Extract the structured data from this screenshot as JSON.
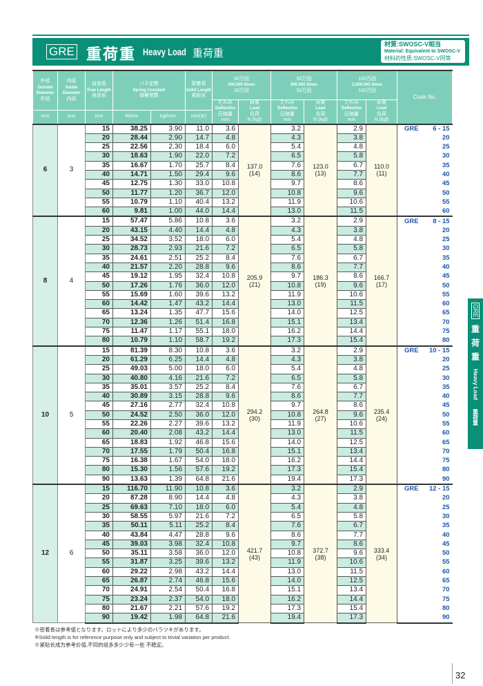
{
  "header": {
    "series": "GRE",
    "title_jp": "重荷重",
    "title_en": "Heavy Load",
    "title_cn": "重荷重",
    "material_jp": "材質:SWOSC-V相当",
    "material_en": "Material: Equivalent to SWOSC-V",
    "material_cn": "材料的性质:SWOSC-V同等"
  },
  "columns": {
    "od": {
      "jp": "外径",
      "en": "Outside Diameter",
      "cn": "外径",
      "unit": "mm"
    },
    "id": {
      "jp": "内径",
      "en": "Inside Diameter",
      "cn": "内径",
      "unit": "mm"
    },
    "free": {
      "jp": "自由長",
      "en": "Free Length",
      "cn": "自由长",
      "unit": "mm"
    },
    "spring": {
      "jp": "バネ定数",
      "en": "Spring Constant",
      "cn": "弹簧常数",
      "unit1": "N/mm",
      "unit2": "kgf/mm"
    },
    "solid": {
      "jp": "密着長",
      "en": "Solid Length",
      "cn": "紧贴长",
      "unit": "mm(※)"
    },
    "life": [
      {
        "jp": "30万回",
        "en": "300,000 times",
        "cn": "30万回"
      },
      {
        "jp": "50万回",
        "en": "500,000 times",
        "cn": "50万回"
      },
      {
        "jp": "100万回",
        "en": "1,000,000 times",
        "cn": "100万回"
      }
    ],
    "defl": {
      "jp": "たわみ",
      "en": "Deflection",
      "cn": "压缩量",
      "unit": "mm"
    },
    "load": {
      "jp": "荷重",
      "en": "Load",
      "cn": "负荷",
      "unit": "N (kgf)"
    },
    "code": "Code No."
  },
  "groups": [
    {
      "od": "6",
      "id": "3",
      "loads": [
        [
          "137.0",
          "(14)"
        ],
        [
          "123.0",
          "(13)"
        ],
        [
          "110.0",
          "(11)"
        ]
      ],
      "stripe_start": "w",
      "code_prefix": "GRE",
      "rows": [
        [
          "15",
          "38.25",
          "3.90",
          "11.0",
          "3.6",
          "3.2",
          "2.9",
          "6 - 15"
        ],
        [
          "20",
          "28.44",
          "2.90",
          "14.7",
          "4.8",
          "4.3",
          "3.8",
          "20"
        ],
        [
          "25",
          "22.56",
          "2.30",
          "18.4",
          "6.0",
          "5.4",
          "4.8",
          "25"
        ],
        [
          "30",
          "18.63",
          "1.90",
          "22.0",
          "7.2",
          "6.5",
          "5.8",
          "30"
        ],
        [
          "35",
          "16.67",
          "1.70",
          "25.7",
          "8.4",
          "7.6",
          "6.7",
          "35"
        ],
        [
          "40",
          "14.71",
          "1.50",
          "29.4",
          "9.6",
          "8.6",
          "7.7",
          "40"
        ],
        [
          "45",
          "12.75",
          "1.30",
          "33.0",
          "10.8",
          "9.7",
          "8.6",
          "45"
        ],
        [
          "50",
          "11.77",
          "1.20",
          "36.7",
          "12.0",
          "10.8",
          "9.6",
          "50"
        ],
        [
          "55",
          "10.79",
          "1.10",
          "40.4",
          "13.2",
          "11.9",
          "10.6",
          "55"
        ],
        [
          "60",
          "9.81",
          "1.00",
          "44.0",
          "14.4",
          "13.0",
          "11.5",
          "60"
        ]
      ]
    },
    {
      "od": "8",
      "id": "4",
      "loads": [
        [
          "205.9",
          "(21)"
        ],
        [
          "186.3",
          "(19)"
        ],
        [
          "166.7",
          "(17)"
        ]
      ],
      "stripe_start": "w",
      "code_prefix": "GRE",
      "rows": [
        [
          "15",
          "57.47",
          "5.86",
          "10.8",
          "3.6",
          "3.2",
          "2.9",
          "8 - 15"
        ],
        [
          "20",
          "43.15",
          "4.40",
          "14.4",
          "4.8",
          "4.3",
          "3.8",
          "20"
        ],
        [
          "25",
          "34.52",
          "3.52",
          "18.0",
          "6.0",
          "5.4",
          "4.8",
          "25"
        ],
        [
          "30",
          "28.73",
          "2.93",
          "21.6",
          "7.2",
          "6.5",
          "5.8",
          "30"
        ],
        [
          "35",
          "24.61",
          "2.51",
          "25.2",
          "8.4",
          "7.6",
          "6.7",
          "35"
        ],
        [
          "40",
          "21.57",
          "2.20",
          "28.8",
          "9.6",
          "8.6",
          "7.7",
          "40"
        ],
        [
          "45",
          "19.12",
          "1.95",
          "32.4",
          "10.8",
          "9.7",
          "8.6",
          "45"
        ],
        [
          "50",
          "17.26",
          "1.76",
          "36.0",
          "12.0",
          "10.8",
          "9.6",
          "50"
        ],
        [
          "55",
          "15.69",
          "1.60",
          "39.6",
          "13.2",
          "11.9",
          "10.6",
          "55"
        ],
        [
          "60",
          "14.42",
          "1.47",
          "43.2",
          "14.4",
          "13.0",
          "11.5",
          "60"
        ],
        [
          "65",
          "13.24",
          "1.35",
          "47.7",
          "15.6",
          "14.0",
          "12.5",
          "65"
        ],
        [
          "70",
          "12.36",
          "1.26",
          "51.4",
          "16.8",
          "15.1",
          "13.4",
          "70"
        ],
        [
          "75",
          "11.47",
          "1.17",
          "55.1",
          "18.0",
          "16.2",
          "14.4",
          "75"
        ],
        [
          "80",
          "10.79",
          "1.10",
          "58.7",
          "19.2",
          "17.3",
          "15.4",
          "80"
        ]
      ]
    },
    {
      "od": "10",
      "id": "5",
      "loads": [
        [
          "294.2",
          "(30)"
        ],
        [
          "264.8",
          "(27)"
        ],
        [
          "235.4",
          "(24)"
        ]
      ],
      "stripe_start": "w",
      "code_prefix": "GRE",
      "rows": [
        [
          "15",
          "81.39",
          "8.30",
          "10.8",
          "3.6",
          "3.2",
          "2.9",
          "10 - 15"
        ],
        [
          "20",
          "61.29",
          "6.25",
          "14.4",
          "4.8",
          "4.3",
          "3.8",
          "20"
        ],
        [
          "25",
          "49.03",
          "5.00",
          "18.0",
          "6.0",
          "5.4",
          "4.8",
          "25"
        ],
        [
          "30",
          "40.80",
          "4.16",
          "21.6",
          "7.2",
          "6.5",
          "5.8",
          "30"
        ],
        [
          "35",
          "35.01",
          "3.57",
          "25.2",
          "8.4",
          "7.6",
          "6.7",
          "35"
        ],
        [
          "40",
          "30.89",
          "3.15",
          "28.8",
          "9.6",
          "8.6",
          "7.7",
          "40"
        ],
        [
          "45",
          "27.16",
          "2.77",
          "32.4",
          "10.8",
          "9.7",
          "8.6",
          "45"
        ],
        [
          "50",
          "24.52",
          "2.50",
          "36.0",
          "12.0",
          "10.8",
          "9.6",
          "50"
        ],
        [
          "55",
          "22.26",
          "2.27",
          "39.6",
          "13.2",
          "11.9",
          "10.6",
          "55"
        ],
        [
          "60",
          "20.40",
          "2.08",
          "43.2",
          "14.4",
          "13.0",
          "11.5",
          "60"
        ],
        [
          "65",
          "18.83",
          "1.92",
          "46.8",
          "15.6",
          "14.0",
          "12.5",
          "65"
        ],
        [
          "70",
          "17.55",
          "1.79",
          "50.4",
          "16.8",
          "15.1",
          "13.4",
          "70"
        ],
        [
          "75",
          "16.38",
          "1.67",
          "54.0",
          "18.0",
          "16.2",
          "14.4",
          "75"
        ],
        [
          "80",
          "15.30",
          "1.56",
          "57.6",
          "19.2",
          "17.3",
          "15.4",
          "80"
        ],
        [
          "90",
          "13.63",
          "1.39",
          "64.8",
          "21.6",
          "19.4",
          "17.3",
          "90"
        ]
      ]
    },
    {
      "od": "12",
      "id": "6",
      "loads": [
        [
          "421.7",
          "(43)"
        ],
        [
          "372.7",
          "(38)"
        ],
        [
          "333.4",
          "(34)"
        ]
      ],
      "stripe_start": "g",
      "code_prefix": "GRE",
      "rows": [
        [
          "15",
          "116.70",
          "11.90",
          "10.8",
          "3.6",
          "3.2",
          "2.9",
          "12 - 15"
        ],
        [
          "20",
          "87.28",
          "8.90",
          "14.4",
          "4.8",
          "4.3",
          "3.8",
          "20"
        ],
        [
          "25",
          "69.63",
          "7.10",
          "18.0",
          "6.0",
          "5.4",
          "4.8",
          "25"
        ],
        [
          "30",
          "58.55",
          "5.97",
          "21.6",
          "7.2",
          "6.5",
          "5.8",
          "30"
        ],
        [
          "35",
          "50.11",
          "5.11",
          "25.2",
          "8.4",
          "7.6",
          "6.7",
          "35"
        ],
        [
          "40",
          "43.84",
          "4.47",
          "28.8",
          "9.6",
          "8.6",
          "7.7",
          "40"
        ],
        [
          "45",
          "39.03",
          "3.98",
          "32.4",
          "10.8",
          "9.7",
          "8.6",
          "45"
        ],
        [
          "50",
          "35.11",
          "3.58",
          "36.0",
          "12.0",
          "10.8",
          "9.6",
          "50"
        ],
        [
          "55",
          "31.87",
          "3.25",
          "39.6",
          "13.2",
          "11.9",
          "10.6",
          "55"
        ],
        [
          "60",
          "29.22",
          "2.98",
          "43.2",
          "14.4",
          "13.0",
          "11.5",
          "60"
        ],
        [
          "65",
          "26.87",
          "2.74",
          "46.8",
          "15.6",
          "14.0",
          "12.5",
          "65"
        ],
        [
          "70",
          "24.91",
          "2.54",
          "50.4",
          "16.8",
          "15.1",
          "13.4",
          "70"
        ],
        [
          "75",
          "23.24",
          "2.37",
          "54.0",
          "18.0",
          "16.2",
          "14.4",
          "75"
        ],
        [
          "80",
          "21.67",
          "2.21",
          "57.6",
          "19.2",
          "17.3",
          "15.4",
          "80"
        ],
        [
          "90",
          "19.42",
          "1.98",
          "64.8",
          "21.6",
          "19.4",
          "17.3",
          "90"
        ]
      ]
    }
  ],
  "notes": [
    "※密着長は参考値となります。ロットにより多少のバラツキがあります。",
    "※Solid length is for reference purpose only and subject to trivial variation per product.",
    "※紧贴长成为参考价值,不同的组多多少少有一些 不稳定。"
  ],
  "side_tab": {
    "series": "GRE",
    "jp": "重荷重",
    "en": "Heavy Load",
    "cn": "重荷重"
  },
  "page_number": "32",
  "colors": {
    "brand": "#0a8f78",
    "header": "#7ecfb9",
    "stripe": "#c9ebe0",
    "load_bg": "#fdfbe6",
    "code": "#1d56a8"
  }
}
